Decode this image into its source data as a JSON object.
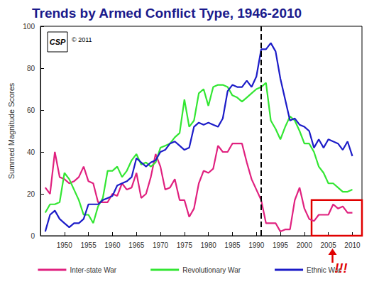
{
  "chart_data": {
    "type": "line",
    "title": "Trends by Armed Conflict Type, 1946-2010",
    "y_label": "Summed Magnitude Scores",
    "x": [
      1946,
      1947,
      1948,
      1949,
      1950,
      1951,
      1952,
      1953,
      1954,
      1955,
      1956,
      1957,
      1958,
      1959,
      1960,
      1961,
      1962,
      1963,
      1964,
      1965,
      1966,
      1967,
      1968,
      1969,
      1970,
      1971,
      1972,
      1973,
      1974,
      1975,
      1976,
      1977,
      1978,
      1979,
      1980,
      1981,
      1982,
      1983,
      1984,
      1985,
      1986,
      1987,
      1988,
      1989,
      1990,
      1991,
      1992,
      1993,
      1994,
      1995,
      1996,
      1997,
      1998,
      1999,
      2000,
      2001,
      2002,
      2003,
      2004,
      2005,
      2006,
      2007,
      2008,
      2009,
      2010
    ],
    "series": [
      {
        "name": "Inter-state War",
        "color": "#e0217f",
        "values": [
          23,
          20,
          40,
          28,
          27,
          25,
          26,
          28,
          33,
          26,
          25,
          16,
          16,
          16,
          20,
          19,
          25,
          22,
          23,
          30,
          18,
          20,
          28,
          39,
          33,
          22,
          23,
          27,
          17,
          17,
          9,
          13,
          25,
          31,
          30,
          32,
          43,
          40,
          40,
          44,
          44,
          44,
          35,
          27,
          22,
          17,
          6,
          6,
          6,
          2,
          3,
          3,
          17,
          23,
          13,
          8,
          7,
          10,
          10,
          10,
          15,
          13,
          14,
          11,
          11
        ]
      },
      {
        "name": "Revolutionary War",
        "color": "#33e633",
        "values": [
          11,
          15,
          15,
          16,
          30,
          27,
          22,
          17,
          10,
          10,
          6,
          14,
          18,
          31,
          31,
          33,
          28,
          31,
          36,
          39,
          34,
          35,
          33,
          35,
          42,
          43,
          44,
          47,
          49,
          65,
          52,
          55,
          68,
          70,
          62,
          71,
          72,
          72,
          71,
          67,
          66,
          64,
          66,
          68,
          70,
          71,
          73,
          55,
          51,
          46,
          52,
          57,
          55,
          50,
          44,
          44,
          40,
          33,
          30,
          25,
          25,
          23,
          21,
          21,
          22
        ]
      },
      {
        "name": "Ethnic War",
        "color": "#1c1cc8",
        "values": [
          2,
          10,
          12,
          8,
          6,
          4,
          6,
          6,
          8,
          15,
          15,
          15,
          17,
          18,
          19,
          24,
          25,
          26,
          28,
          37,
          35,
          33,
          35,
          36,
          40,
          41,
          44,
          45,
          43,
          41,
          42,
          52,
          54,
          53,
          54,
          53,
          52,
          56,
          69,
          72,
          71,
          71,
          74,
          71,
          76,
          89,
          89,
          92,
          88,
          75,
          65,
          55,
          56,
          53,
          52,
          50,
          42,
          46,
          42,
          46,
          45,
          44,
          41,
          45,
          38
        ]
      }
    ],
    "xlim": [
      1945,
      2012
    ],
    "xticks": [
      1950,
      1955,
      1960,
      1965,
      1970,
      1975,
      1980,
      1985,
      1990,
      1995,
      2000,
      2005,
      2010
    ],
    "ylim": [
      0,
      100
    ],
    "yticks": [
      0,
      20,
      40,
      60,
      80,
      100
    ],
    "grid": false,
    "legend": "bottom",
    "reference_line": {
      "x": 1991,
      "line_style": "dashed",
      "color": "#000000"
    },
    "highlight_box": {
      "xlim": [
        2001.5,
        2012
      ],
      "ylim": [
        0,
        17
      ],
      "color": "#e00000"
    },
    "annotation": {
      "text": "!!!",
      "color": "#e00000"
    },
    "logo": {
      "text": "CSP",
      "copyright": "© 2011"
    }
  }
}
